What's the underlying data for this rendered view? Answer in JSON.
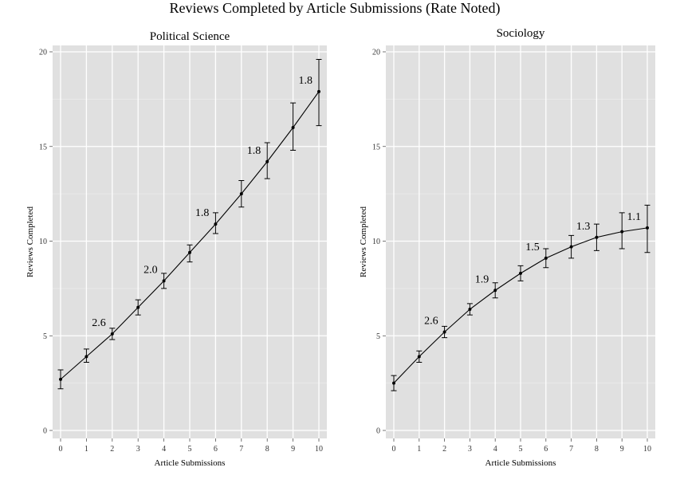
{
  "title": "Reviews Completed by Article Submissions (Rate Noted)",
  "chart_data": [
    {
      "type": "line",
      "title": "Political Science",
      "xlabel": "Article Submissions",
      "ylabel": "Reviews Completed",
      "xlim": [
        0,
        10
      ],
      "ylim": [
        0,
        20
      ],
      "x_ticks": [
        0,
        1,
        2,
        3,
        4,
        5,
        6,
        7,
        8,
        9,
        10
      ],
      "y_ticks": [
        0,
        5,
        10,
        15,
        20
      ],
      "grid": true,
      "series": [
        {
          "x": [
            0,
            1,
            2,
            3,
            4,
            5,
            6,
            7,
            8,
            9,
            10
          ],
          "y": [
            2.7,
            3.9,
            5.1,
            6.5,
            7.9,
            9.4,
            10.9,
            12.5,
            14.2,
            16.0,
            17.9
          ],
          "lower": [
            2.2,
            3.6,
            4.8,
            6.1,
            7.5,
            8.9,
            10.4,
            11.8,
            13.3,
            14.8,
            16.1
          ],
          "upper": [
            3.2,
            4.3,
            5.4,
            6.9,
            8.3,
            9.8,
            11.5,
            13.2,
            15.2,
            17.3,
            19.6
          ]
        }
      ],
      "annotations": [
        {
          "x": 2,
          "y": 5.1,
          "text": "2.6"
        },
        {
          "x": 4,
          "y": 7.9,
          "text": "2.0"
        },
        {
          "x": 6,
          "y": 10.9,
          "text": "1.8"
        },
        {
          "x": 8,
          "y": 14.2,
          "text": "1.8"
        },
        {
          "x": 10,
          "y": 17.9,
          "text": "1.8"
        }
      ]
    },
    {
      "type": "line",
      "title": "Sociology",
      "xlabel": "Article Submissions",
      "ylabel": "Reviews Completed",
      "xlim": [
        0,
        10
      ],
      "ylim": [
        0,
        20
      ],
      "x_ticks": [
        0,
        1,
        2,
        3,
        4,
        5,
        6,
        7,
        8,
        9,
        10
      ],
      "y_ticks": [
        0,
        5,
        10,
        15,
        20
      ],
      "grid": true,
      "series": [
        {
          "x": [
            0,
            1,
            2,
            3,
            4,
            5,
            6,
            7,
            8,
            9,
            10
          ],
          "y": [
            2.5,
            3.9,
            5.2,
            6.4,
            7.4,
            8.3,
            9.1,
            9.7,
            10.2,
            10.5,
            10.7
          ],
          "lower": [
            2.1,
            3.6,
            4.9,
            6.1,
            7.0,
            7.9,
            8.6,
            9.1,
            9.5,
            9.6,
            9.4
          ],
          "upper": [
            2.9,
            4.2,
            5.5,
            6.7,
            7.8,
            8.7,
            9.6,
            10.3,
            10.9,
            11.5,
            11.9
          ]
        }
      ],
      "annotations": [
        {
          "x": 2,
          "y": 5.2,
          "text": "2.6"
        },
        {
          "x": 4,
          "y": 7.4,
          "text": "1.9"
        },
        {
          "x": 6,
          "y": 9.1,
          "text": "1.5"
        },
        {
          "x": 8,
          "y": 10.2,
          "text": "1.3"
        },
        {
          "x": 10,
          "y": 10.7,
          "text": "1.1"
        }
      ]
    }
  ],
  "colors": {
    "panel_background": "#e0e0e0",
    "grid": "#ffffff",
    "line": "#000000"
  }
}
